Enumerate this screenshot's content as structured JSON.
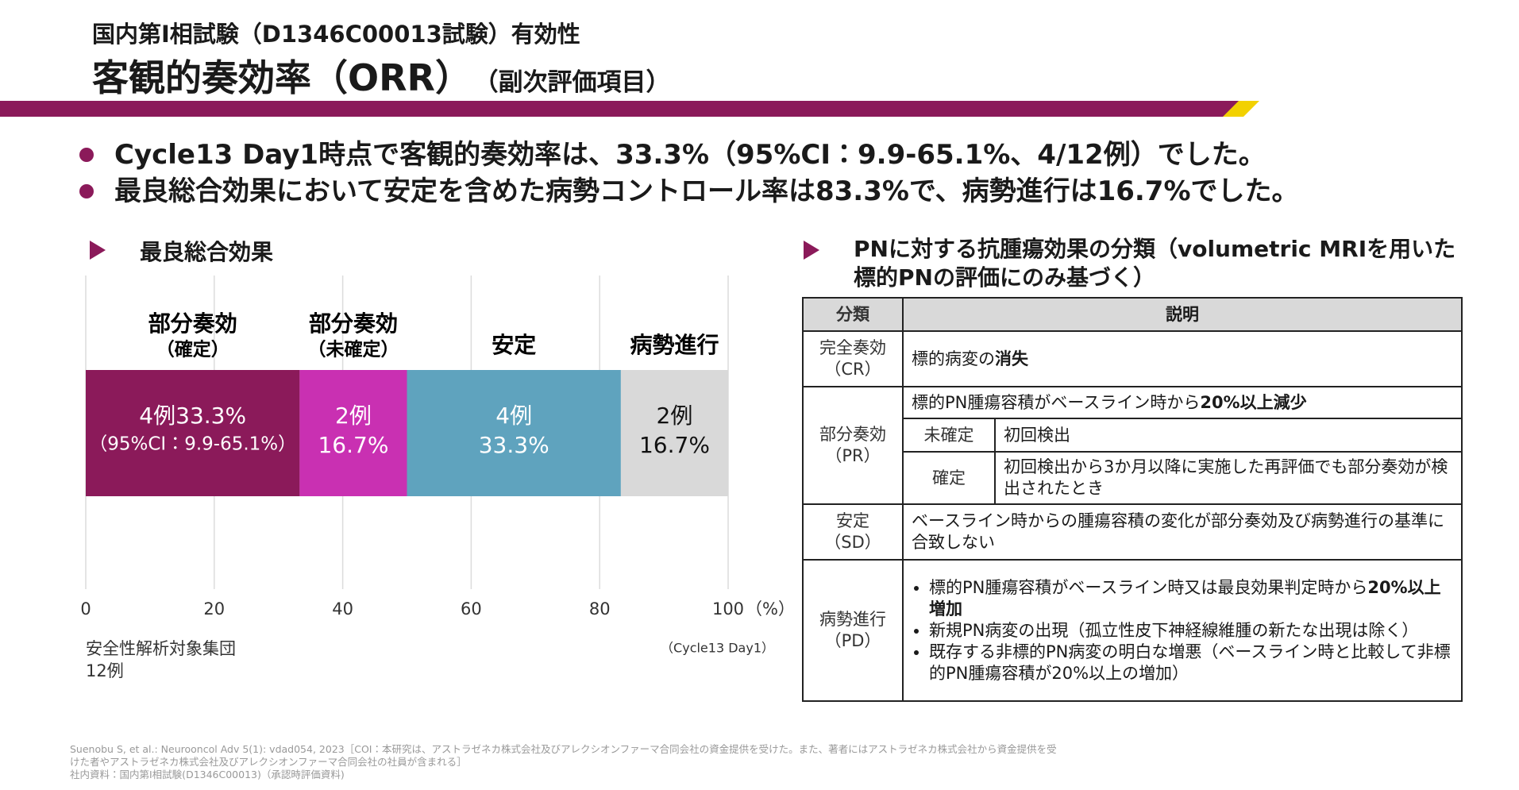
{
  "header": {
    "subtitle": "国内第Ⅰ相試験（D1346C00013試験）有効性",
    "title": "客観的奏効率（ORR）",
    "title_note": "（副次評価項目）"
  },
  "bullets": [
    "Cycle13 Day1時点で客観的奏効率は、33.3%（95%CI：9.9-65.1%、4/12例）でした。",
    "最良総合効果において安定を含めた病勢コントロール率は83.3%で、病勢進行は16.7%でした。"
  ],
  "chart_data": {
    "type": "bar",
    "orientation": "horizontal",
    "stacked": true,
    "heading": "最良総合効果",
    "xlim": [
      0,
      100
    ],
    "xticks": [
      0,
      20,
      40,
      60,
      80,
      100
    ],
    "xlabel": "（%）",
    "grid": true,
    "series": [
      {
        "name": "部分奏効",
        "sublabel": "（確定）",
        "color": "#8b1a5a",
        "label_color": "#ffffff",
        "values": [
          33.3
        ],
        "value_labels": [
          "33.3%"
        ],
        "count_label": "4例",
        "ci_label": "（95%CI：9.9-65.1%）"
      },
      {
        "name": "部分奏効",
        "sublabel": "（未確定）",
        "color": "#c930b2",
        "label_color": "#ffffff",
        "values": [
          16.7
        ],
        "value_labels": [
          "16.7%"
        ],
        "count_label": "2例"
      },
      {
        "name": "安定",
        "color": "#5fa3be",
        "label_color": "#ffffff",
        "values": [
          33.3
        ],
        "value_labels": [
          "33.3%"
        ],
        "count_label": "4例"
      },
      {
        "name": "病勢進行",
        "color": "#d9d9d9",
        "label_color": "#111111",
        "values": [
          16.7
        ],
        "value_labels": [
          "16.7%"
        ],
        "count_label": "2例"
      }
    ],
    "population": "安全性解析対象集団",
    "n": "12例",
    "timepoint": "（Cycle13 Day1）"
  },
  "table": {
    "heading": "PNに対する抗腫瘍効果の分類（volumetric MRIを用いた標的PNの評価にのみ基づく）",
    "columns": [
      "分類",
      "説明"
    ],
    "rows": [
      {
        "category": "完全奏効",
        "abbr": "（CR）",
        "description": [
          {
            "text": "標的病変の"
          },
          {
            "text": "消失",
            "bold": true
          }
        ]
      },
      {
        "category": "部分奏効",
        "abbr": "（PR）",
        "description": [
          {
            "text": "標的PN腫瘍容積がベースライン時から"
          },
          {
            "text": "20%以上減少",
            "bold": true
          }
        ],
        "subrows": [
          {
            "label": "未確定",
            "description": "初回検出"
          },
          {
            "label": "確定",
            "description": "初回検出から3か月以降に実施した再評価でも部分奏効が検出されたとき"
          }
        ]
      },
      {
        "category": "安定",
        "abbr": "（SD）",
        "description": [
          {
            "text": "ベースライン時からの腫瘍容積の変化が部分奏効及び病勢進行の基準に合致しない"
          }
        ]
      },
      {
        "category": "病勢進行",
        "abbr": "（PD）",
        "items": [
          [
            {
              "text": "標的PN腫瘍容積がベースライン時又は最良効果判定時から"
            },
            {
              "text": "20%以上増加",
              "bold": true
            }
          ],
          [
            {
              "text": "新規PN病変の出現（孤立性皮下神経線維腫の新たな出現は除く）"
            }
          ],
          [
            {
              "text": "既存する非標的PN病変の明白な増悪（ベースライン時と比較して非標的PN腫瘍容積が20%以上の増加）"
            }
          ]
        ]
      }
    ]
  },
  "footer": [
    "Suenobu S, et al.: Neurooncol Adv 5(1): vdad054, 2023［COI：本研究は、アストラゼネカ株式会社及びアレクシオンファーマ合同会社の資金提供を受けた。また、著者にはアストラゼネカ株式会社から資金提供を受",
    "けた者やアストラゼネカ株式会社及びアレクシオンファーマ合同会社の社員が含まれる］",
    "社内資料：国内第Ⅰ相試験(D1346C00013)（承認時評価資料)"
  ]
}
